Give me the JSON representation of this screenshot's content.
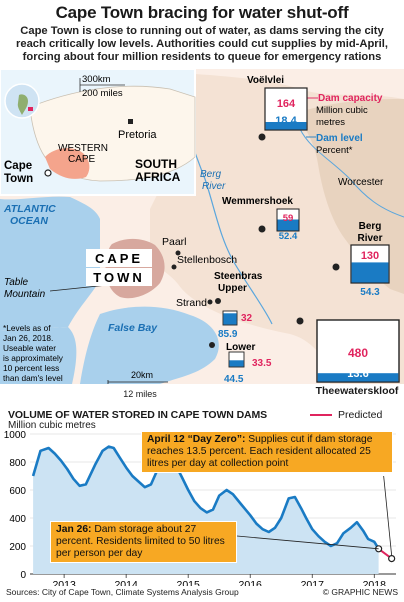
{
  "title": "Cape Town bracing for water shut-off",
  "subtitle": "Cape Town is close to running out of water, as dams serving the city reach critically low levels. Authorities could cut supplies by mid-April, forcing about four million residents to queue for emergency rations",
  "inset": {
    "scale_km": "300km",
    "scale_miles": "200 miles",
    "places": [
      "Pretoria",
      "WESTERN",
      "CAPE",
      "SOUTH",
      "AFRICA",
      "Cape",
      "Town"
    ]
  },
  "map": {
    "places": {
      "paarl": "Paarl",
      "stellenbosch": "Stellenbosch",
      "strand": "Strand",
      "worcester": "Worcester",
      "cape_town_1": "CAPE",
      "cape_town_2": "TOWN",
      "atlantic_1": "ATLANTIC",
      "atlantic_2": "OCEAN",
      "table_1": "Table",
      "table_2": "Mountain",
      "false_bay": "False Bay",
      "berg_river_1": "Berg",
      "berg_river_2": "River"
    },
    "scale_km": "20km",
    "scale_miles": "12 miles",
    "note": [
      "*Levels as of",
      "Jan 26, 2018.",
      "Useable water",
      "is approximately",
      "10 percent less",
      "than dam's level"
    ],
    "key": {
      "capacity": "Dam capacity",
      "capacity_sub_1": "Million cubic",
      "capacity_sub_2": "metres",
      "level": "Dam level",
      "level_sub": "Percent*"
    },
    "accent_capacity": "#e0245e",
    "accent_level": "#1a7bc4",
    "dams": [
      {
        "name": "Voëlvlei",
        "capacity": "164",
        "level": "18.4"
      },
      {
        "name": "Wemmershoek",
        "capacity": "59",
        "level": "52.4"
      },
      {
        "name_1": "Berg",
        "name_2": "River",
        "capacity": "130",
        "level": "54.3"
      },
      {
        "name_1": "Steenbras",
        "name_2": "Upper",
        "capacity": "32",
        "level": "85.9"
      },
      {
        "name": "Lower",
        "capacity": "33.5",
        "level": "44.5"
      },
      {
        "name": "Theewaterskloof",
        "capacity": "480",
        "level": "13.6"
      }
    ]
  },
  "chart_data": {
    "type": "line",
    "title": "VOLUME OF WATER STORED IN CAPE TOWN DAMS",
    "ylabel": "Million cubic metres",
    "ylim": [
      0,
      1000
    ],
    "yticks": [
      0,
      200,
      400,
      600,
      800,
      1000
    ],
    "xticks": [
      "2013",
      "2014",
      "2015",
      "2016",
      "2017",
      "2018"
    ],
    "legend": {
      "predicted": "Predicted"
    },
    "series": [
      {
        "x": [
          2012.5,
          2012.62,
          2012.75,
          2012.85,
          2012.95,
          2013.05,
          2013.15,
          2013.25,
          2013.35,
          2013.5,
          2013.62,
          2013.72,
          2013.8,
          2013.9,
          2014.0,
          2014.1,
          2014.2,
          2014.3,
          2014.4,
          2014.5,
          2014.62,
          2014.72,
          2014.82,
          2014.9,
          2015.0,
          2015.1,
          2015.2,
          2015.3,
          2015.4,
          2015.5,
          2015.62,
          2015.72,
          2015.85,
          2016.0,
          2016.1,
          2016.2,
          2016.3,
          2016.4,
          2016.5,
          2016.62,
          2016.72,
          2016.82,
          2016.9,
          2017.0,
          2017.1,
          2017.2,
          2017.3,
          2017.4,
          2017.5,
          2017.62,
          2017.72,
          2017.82,
          2017.9,
          2018.0,
          2018.07
        ],
        "values": [
          700,
          880,
          900,
          860,
          810,
          750,
          680,
          630,
          640,
          780,
          880,
          910,
          900,
          830,
          760,
          700,
          660,
          620,
          640,
          740,
          820,
          810,
          760,
          690,
          600,
          520,
          470,
          440,
          460,
          560,
          600,
          570,
          500,
          420,
          360,
          320,
          300,
          330,
          400,
          540,
          550,
          470,
          400,
          320,
          270,
          230,
          200,
          220,
          290,
          330,
          370,
          310,
          250,
          230,
          180
        ]
      },
      {
        "name": "Predicted",
        "x": [
          2018.07,
          2018.28
        ],
        "values": [
          180,
          110
        ]
      }
    ]
  },
  "callouts": {
    "day_zero_bold": "April 12 “Day Zero”:",
    "day_zero_text": "Supplies cut if dam storage reaches 13.5 percent. Each resident allocated 25 litres per day at collection point",
    "jan26_bold": "Jan 26:",
    "jan26_text": "Dam storage about 27 percent. Residents limited to 50 litres per person per day"
  },
  "footer": {
    "sources": "Sources: City of Cape Town, Climate Systems Analysis Group",
    "credit": "© GRAPHIC NEWS"
  }
}
